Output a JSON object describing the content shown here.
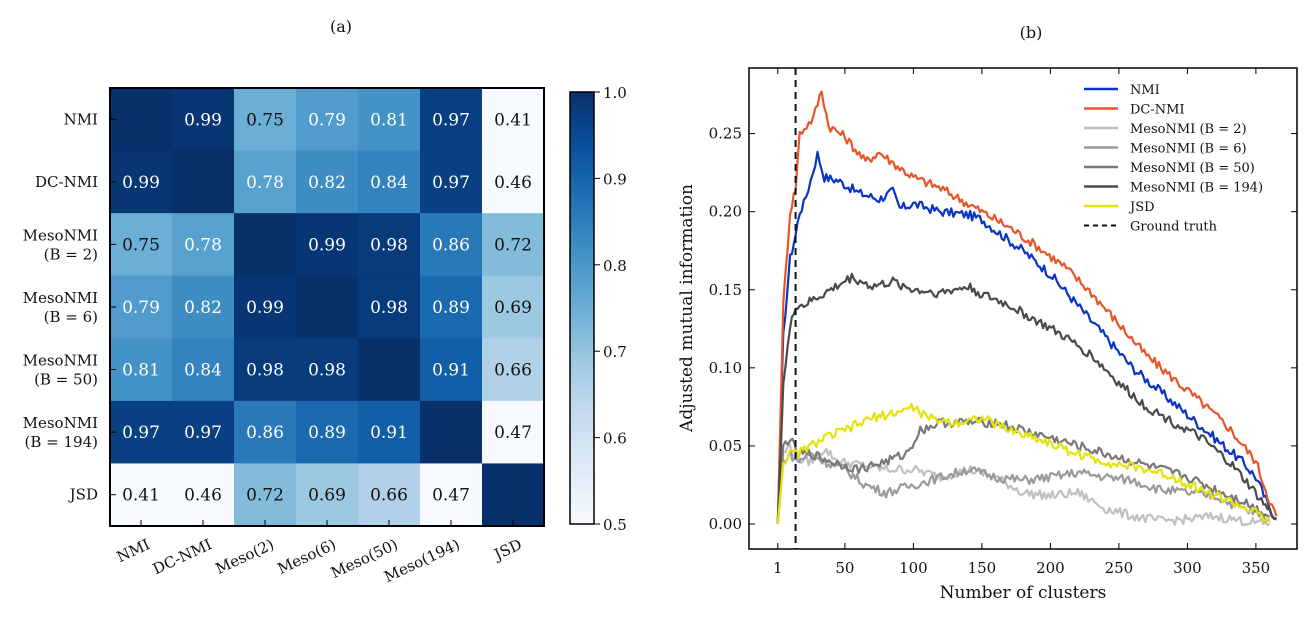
{
  "chart_data": [
    {
      "type": "heatmap",
      "panel_label": "(a)",
      "row_labels": [
        [
          "NMI"
        ],
        [
          "DC-NMI"
        ],
        [
          "MesoNMI",
          "(B = 2)"
        ],
        [
          "MesoNMI",
          "(B = 6)"
        ],
        [
          "MesoNMI",
          "(B = 50)"
        ],
        [
          "MesoNMI",
          "(B = 194)"
        ],
        [
          "JSD"
        ]
      ],
      "col_labels": [
        "NMI",
        "DC-NMI",
        "Meso(2)",
        "Meso(6)",
        "Meso(50)",
        "Meso(194)",
        "JSD"
      ],
      "matrix": [
        [
          1.0,
          0.99,
          0.75,
          0.79,
          0.81,
          0.97,
          0.41
        ],
        [
          0.99,
          1.0,
          0.78,
          0.82,
          0.84,
          0.97,
          0.46
        ],
        [
          0.75,
          0.78,
          1.0,
          0.99,
          0.98,
          0.86,
          0.72
        ],
        [
          0.79,
          0.82,
          0.99,
          1.0,
          0.98,
          0.89,
          0.69
        ],
        [
          0.81,
          0.84,
          0.98,
          0.98,
          1.0,
          0.91,
          0.66
        ],
        [
          0.97,
          0.97,
          0.86,
          0.89,
          0.91,
          1.0,
          0.47
        ],
        [
          0.41,
          0.46,
          0.72,
          0.69,
          0.66,
          0.47,
          1.0
        ]
      ],
      "shown_labels": [
        [
          "",
          "0.99",
          "0.75",
          "0.79",
          "0.81",
          "0.97",
          "0.41"
        ],
        [
          "0.99",
          "",
          "0.78",
          "0.82",
          "0.84",
          "0.97",
          "0.46"
        ],
        [
          "0.75",
          "0.78",
          "",
          "0.99",
          "0.98",
          "0.86",
          "0.72"
        ],
        [
          "0.79",
          "0.82",
          "0.99",
          "",
          "0.98",
          "0.89",
          "0.69"
        ],
        [
          "0.81",
          "0.84",
          "0.98",
          "0.98",
          "",
          "0.91",
          "0.66"
        ],
        [
          "0.97",
          "0.97",
          "0.86",
          "0.89",
          "0.91",
          "",
          "0.47"
        ],
        [
          "0.41",
          "0.46",
          "0.72",
          "0.69",
          "0.66",
          "0.47",
          ""
        ]
      ],
      "colorbar": {
        "min": 0.5,
        "max": 1.0,
        "ticks": [
          0.5,
          0.6,
          0.7,
          0.8,
          0.9,
          1.0
        ],
        "tick_labels": [
          "0.5",
          "0.6",
          "0.7",
          "0.8",
          "0.9",
          "1.0"
        ],
        "colormap": "Blues",
        "colors": {
          "low": "#f7fbff",
          "high": "#08306b"
        }
      }
    },
    {
      "type": "line",
      "panel_label": "(b)",
      "xlabel": "Number of clusters",
      "ylabel": "Adjusted mutual information",
      "xlim": [
        -20,
        380
      ],
      "ylim": [
        -0.016,
        0.292
      ],
      "xticks": [
        1,
        50,
        100,
        150,
        200,
        250,
        300,
        350
      ],
      "xtick_labels": [
        "1",
        "50",
        "100",
        "150",
        "200",
        "250",
        "300",
        "350"
      ],
      "yticks": [
        0.0,
        0.05,
        0.1,
        0.15,
        0.2,
        0.25
      ],
      "ytick_labels": [
        "0.00",
        "0.05",
        "0.10",
        "0.15",
        "0.20",
        "0.25"
      ],
      "ground_truth_x": 14,
      "legend_position": "top-right",
      "series": [
        {
          "name": "NMI",
          "color": "#0a35c2",
          "points": [
            [
              1,
              0.0
            ],
            [
              5,
              0.12
            ],
            [
              10,
              0.17
            ],
            [
              14,
              0.185
            ],
            [
              17,
              0.2
            ],
            [
              20,
              0.205
            ],
            [
              25,
              0.22
            ],
            [
              30,
              0.237
            ],
            [
              35,
              0.222
            ],
            [
              45,
              0.22
            ],
            [
              60,
              0.212
            ],
            [
              75,
              0.208
            ],
            [
              85,
              0.213
            ],
            [
              90,
              0.202
            ],
            [
              100,
              0.205
            ],
            [
              120,
              0.2
            ],
            [
              140,
              0.198
            ],
            [
              150,
              0.195
            ],
            [
              160,
              0.188
            ],
            [
              180,
              0.175
            ],
            [
              200,
              0.16
            ],
            [
              220,
              0.14
            ],
            [
              240,
              0.12
            ],
            [
              260,
              0.1
            ],
            [
              280,
              0.085
            ],
            [
              300,
              0.07
            ],
            [
              320,
              0.055
            ],
            [
              340,
              0.04
            ],
            [
              350,
              0.03
            ],
            [
              360,
              0.01
            ],
            [
              365,
              0.003
            ]
          ]
        },
        {
          "name": "DC-NMI",
          "color": "#e8552b",
          "points": [
            [
              1,
              0.0
            ],
            [
              5,
              0.14
            ],
            [
              10,
              0.2
            ],
            [
              14,
              0.215
            ],
            [
              17,
              0.25
            ],
            [
              22,
              0.255
            ],
            [
              27,
              0.26
            ],
            [
              33,
              0.278
            ],
            [
              38,
              0.255
            ],
            [
              50,
              0.248
            ],
            [
              65,
              0.232
            ],
            [
              75,
              0.238
            ],
            [
              90,
              0.228
            ],
            [
              100,
              0.222
            ],
            [
              120,
              0.215
            ],
            [
              140,
              0.205
            ],
            [
              150,
              0.2
            ],
            [
              170,
              0.19
            ],
            [
              190,
              0.178
            ],
            [
              210,
              0.165
            ],
            [
              230,
              0.148
            ],
            [
              250,
              0.128
            ],
            [
              270,
              0.108
            ],
            [
              290,
              0.093
            ],
            [
              310,
              0.078
            ],
            [
              330,
              0.062
            ],
            [
              350,
              0.04
            ],
            [
              360,
              0.015
            ],
            [
              365,
              0.005
            ]
          ]
        },
        {
          "name": "MesoNMI (B = 2)",
          "color": "#c0c0c0",
          "points": [
            [
              1,
              0.0
            ],
            [
              5,
              0.045
            ],
            [
              10,
              0.05
            ],
            [
              15,
              0.042
            ],
            [
              25,
              0.04
            ],
            [
              35,
              0.048
            ],
            [
              45,
              0.04
            ],
            [
              60,
              0.038
            ],
            [
              80,
              0.035
            ],
            [
              100,
              0.035
            ],
            [
              120,
              0.03
            ],
            [
              140,
              0.035
            ],
            [
              160,
              0.03
            ],
            [
              180,
              0.02
            ],
            [
              200,
              0.018
            ],
            [
              220,
              0.02
            ],
            [
              240,
              0.01
            ],
            [
              260,
              0.005
            ],
            [
              280,
              0.002
            ],
            [
              300,
              0.003
            ],
            [
              320,
              0.005
            ],
            [
              340,
              0.002
            ],
            [
              360,
              0.0
            ]
          ]
        },
        {
          "name": "MesoNMI (B = 6)",
          "color": "#9a9a9a",
          "points": [
            [
              1,
              0.0
            ],
            [
              5,
              0.04
            ],
            [
              10,
              0.045
            ],
            [
              15,
              0.04
            ],
            [
              25,
              0.045
            ],
            [
              35,
              0.04
            ],
            [
              50,
              0.035
            ],
            [
              65,
              0.025
            ],
            [
              80,
              0.02
            ],
            [
              100,
              0.025
            ],
            [
              120,
              0.03
            ],
            [
              140,
              0.035
            ],
            [
              160,
              0.03
            ],
            [
              180,
              0.028
            ],
            [
              200,
              0.03
            ],
            [
              220,
              0.033
            ],
            [
              240,
              0.03
            ],
            [
              260,
              0.028
            ],
            [
              280,
              0.022
            ],
            [
              300,
              0.02
            ],
            [
              320,
              0.018
            ],
            [
              340,
              0.01
            ],
            [
              360,
              0.003
            ]
          ]
        },
        {
          "name": "MesoNMI (B = 50)",
          "color": "#787878",
          "points": [
            [
              1,
              0.0
            ],
            [
              5,
              0.05
            ],
            [
              10,
              0.055
            ],
            [
              15,
              0.045
            ],
            [
              25,
              0.045
            ],
            [
              40,
              0.04
            ],
            [
              60,
              0.035
            ],
            [
              80,
              0.04
            ],
            [
              95,
              0.045
            ],
            [
              105,
              0.06
            ],
            [
              120,
              0.065
            ],
            [
              140,
              0.065
            ],
            [
              160,
              0.065
            ],
            [
              180,
              0.06
            ],
            [
              200,
              0.055
            ],
            [
              220,
              0.05
            ],
            [
              240,
              0.045
            ],
            [
              260,
              0.04
            ],
            [
              280,
              0.035
            ],
            [
              300,
              0.03
            ],
            [
              320,
              0.022
            ],
            [
              340,
              0.015
            ],
            [
              360,
              0.005
            ]
          ]
        },
        {
          "name": "MesoNMI (B = 194)",
          "color": "#4a4a4a",
          "points": [
            [
              1,
              0.0
            ],
            [
              5,
              0.09
            ],
            [
              10,
              0.125
            ],
            [
              14,
              0.14
            ],
            [
              20,
              0.14
            ],
            [
              30,
              0.145
            ],
            [
              40,
              0.15
            ],
            [
              55,
              0.158
            ],
            [
              70,
              0.152
            ],
            [
              85,
              0.155
            ],
            [
              100,
              0.15
            ],
            [
              120,
              0.148
            ],
            [
              140,
              0.152
            ],
            [
              150,
              0.147
            ],
            [
              170,
              0.14
            ],
            [
              190,
              0.13
            ],
            [
              210,
              0.12
            ],
            [
              230,
              0.108
            ],
            [
              250,
              0.09
            ],
            [
              270,
              0.075
            ],
            [
              290,
              0.065
            ],
            [
              310,
              0.055
            ],
            [
              330,
              0.04
            ],
            [
              345,
              0.025
            ],
            [
              360,
              0.008
            ],
            [
              365,
              0.004
            ]
          ]
        },
        {
          "name": "JSD",
          "color": "#e4e40c",
          "points": [
            [
              1,
              0.0
            ],
            [
              5,
              0.04
            ],
            [
              10,
              0.045
            ],
            [
              15,
              0.045
            ],
            [
              25,
              0.05
            ],
            [
              35,
              0.055
            ],
            [
              50,
              0.06
            ],
            [
              70,
              0.068
            ],
            [
              90,
              0.072
            ],
            [
              100,
              0.075
            ],
            [
              110,
              0.068
            ],
            [
              130,
              0.065
            ],
            [
              150,
              0.068
            ],
            [
              170,
              0.06
            ],
            [
              190,
              0.055
            ],
            [
              210,
              0.048
            ],
            [
              230,
              0.042
            ],
            [
              250,
              0.038
            ],
            [
              270,
              0.035
            ],
            [
              290,
              0.03
            ],
            [
              310,
              0.022
            ],
            [
              330,
              0.015
            ],
            [
              350,
              0.007
            ],
            [
              360,
              0.001
            ]
          ]
        },
        {
          "name": "Ground truth",
          "color": "#111111",
          "style": "dashed"
        }
      ]
    }
  ]
}
